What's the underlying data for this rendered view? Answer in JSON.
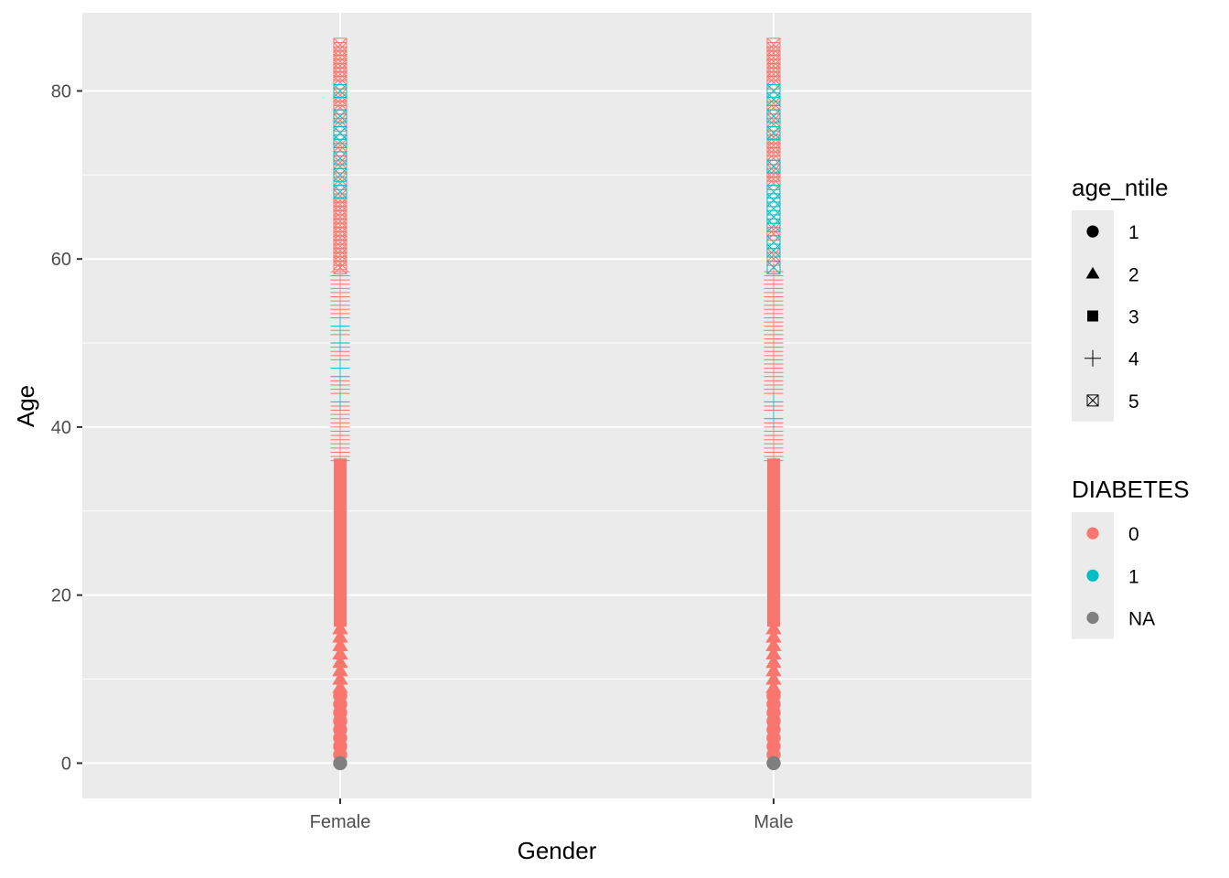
{
  "chart_data": {
    "type": "scatter",
    "xlabel": "Gender",
    "ylabel": "Age",
    "categories": [
      "Female",
      "Male"
    ],
    "ylim": [
      -4.2,
      89.3
    ],
    "y_ticks": [
      "0",
      "20",
      "40",
      "60",
      "80"
    ],
    "y_tick_values": [
      0,
      20,
      40,
      60,
      80
    ],
    "y_minor_values": [
      10,
      30,
      50,
      70
    ],
    "grid": true,
    "panel_color": "#ebebeb",
    "legends": [
      {
        "title": "age_ntile",
        "mapping": "shape",
        "position": "right",
        "items": [
          {
            "label": "1",
            "shape": "circle"
          },
          {
            "label": "2",
            "shape": "triangle"
          },
          {
            "label": "3",
            "shape": "square"
          },
          {
            "label": "4",
            "shape": "plus"
          },
          {
            "label": "5",
            "shape": "square-cross"
          }
        ]
      },
      {
        "title": "DIABETES",
        "mapping": "color",
        "position": "right",
        "items": [
          {
            "label": "0",
            "color": "#f8766d"
          },
          {
            "label": "1",
            "color": "#00bfc4"
          },
          {
            "label": "NA",
            "color": "#7f7f7f"
          }
        ]
      }
    ],
    "shape_bands": [
      {
        "age_ntile": "1",
        "shape": "circle",
        "age_from": 1,
        "age_to": 8
      },
      {
        "age_ntile": "2",
        "shape": "triangle",
        "age_from": 9,
        "age_to": 16
      },
      {
        "age_ntile": "3",
        "shape": "square",
        "age_from": 17,
        "age_to": 35
      },
      {
        "age_ntile": "4",
        "shape": "plus",
        "age_from": 36,
        "age_to": 58
      },
      {
        "age_ntile": "5",
        "shape": "square-cross",
        "age_from": 58,
        "age_to": 85
      }
    ],
    "series": [
      {
        "category": "Female",
        "na_ages": [
          0
        ],
        "diabetes_1_ages": [
          43,
          46,
          47,
          50,
          52,
          68,
          70,
          72,
          74,
          75,
          77,
          80
        ],
        "diabetes_0_age_range": [
          1,
          85
        ]
      },
      {
        "category": "Male",
        "na_ages": [
          0
        ],
        "diabetes_1_ages": [
          41,
          43,
          59,
          61,
          62,
          64,
          65,
          66,
          67,
          68,
          71,
          75,
          77,
          79,
          80
        ],
        "diabetes_0_age_range": [
          1,
          85
        ]
      }
    ]
  }
}
